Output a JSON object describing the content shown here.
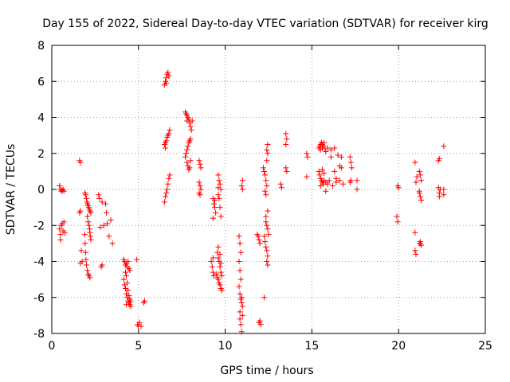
{
  "chart_data": {
    "type": "scatter",
    "title": "Day 155 of 2022, Sidereal Day-to-day VTEC variation (SDTVAR) for receiver kirg",
    "xlabel": "GPS time / hours",
    "ylabel": "SDTVAR / TECUs",
    "xlim": [
      0,
      25
    ],
    "ylim": [
      -8,
      8
    ],
    "xticks": [
      "0",
      "5",
      "10",
      "15",
      "20",
      "25"
    ],
    "yticks": [
      "-8",
      "-6",
      "-4",
      "-2",
      "0",
      "2",
      "4",
      "6",
      "8"
    ],
    "grid": true,
    "marker": "+",
    "color": "#ff0000",
    "series": [
      {
        "name": "SDTVAR",
        "points": [
          [
            0.45,
            0.2
          ],
          [
            0.5,
            0.0
          ],
          [
            0.55,
            -0.1
          ],
          [
            0.6,
            -0.05
          ],
          [
            0.65,
            0.0
          ],
          [
            0.7,
            -0.1
          ],
          [
            0.45,
            -2.2
          ],
          [
            0.5,
            -2.5
          ],
          [
            0.5,
            -2.8
          ],
          [
            0.55,
            -2.0
          ],
          [
            0.6,
            -1.9
          ],
          [
            0.65,
            -2.3
          ],
          [
            0.7,
            -1.8
          ],
          [
            0.75,
            -2.4
          ],
          [
            1.6,
            1.6
          ],
          [
            1.65,
            1.5
          ],
          [
            1.6,
            -1.3
          ],
          [
            1.65,
            -1.2
          ],
          [
            1.7,
            -3.4
          ],
          [
            1.75,
            -4.0
          ],
          [
            1.65,
            -4.1
          ],
          [
            1.9,
            -2.5
          ],
          [
            1.92,
            -3.0
          ],
          [
            1.95,
            -3.5
          ],
          [
            1.97,
            -3.9
          ],
          [
            2.0,
            -4.2
          ],
          [
            2.05,
            -4.5
          ],
          [
            2.1,
            -4.7
          ],
          [
            2.15,
            -4.8
          ],
          [
            2.2,
            -4.9
          ],
          [
            1.95,
            -0.3
          ],
          [
            2.0,
            -0.5
          ],
          [
            2.03,
            -0.7
          ],
          [
            2.06,
            -0.8
          ],
          [
            2.1,
            -0.9
          ],
          [
            2.13,
            -1.0
          ],
          [
            2.16,
            -1.1
          ],
          [
            2.2,
            -1.2
          ],
          [
            2.25,
            -1.3
          ],
          [
            1.92,
            -0.2
          ],
          [
            2.05,
            -1.5
          ],
          [
            2.1,
            -1.8
          ],
          [
            2.15,
            -2.0
          ],
          [
            2.18,
            -2.2
          ],
          [
            2.2,
            -2.4
          ],
          [
            2.22,
            -2.6
          ],
          [
            2.25,
            -2.8
          ],
          [
            2.7,
            -0.3
          ],
          [
            2.75,
            -0.5
          ],
          [
            2.9,
            -0.7
          ],
          [
            3.1,
            -0.8
          ],
          [
            2.8,
            -2.1
          ],
          [
            3.0,
            -2.0
          ],
          [
            3.2,
            -1.9
          ],
          [
            3.4,
            -1.7
          ],
          [
            3.15,
            -1.3
          ],
          [
            3.3,
            -2.6
          ],
          [
            3.5,
            -3.0
          ],
          [
            2.9,
            -4.2
          ],
          [
            2.85,
            -4.3
          ],
          [
            4.15,
            -3.9
          ],
          [
            4.2,
            -4.0
          ],
          [
            4.25,
            -4.2
          ],
          [
            4.3,
            -4.1
          ],
          [
            4.35,
            -4.3
          ],
          [
            4.4,
            -4.0
          ],
          [
            4.45,
            -4.4
          ],
          [
            4.5,
            -4.5
          ],
          [
            4.15,
            -5.0
          ],
          [
            4.2,
            -5.3
          ],
          [
            4.25,
            -5.5
          ],
          [
            4.3,
            -5.8
          ],
          [
            4.35,
            -6.0
          ],
          [
            4.4,
            -6.2
          ],
          [
            4.45,
            -6.3
          ],
          [
            4.5,
            -6.4
          ],
          [
            4.55,
            -6.5
          ],
          [
            4.25,
            -4.6
          ],
          [
            4.3,
            -4.8
          ],
          [
            4.35,
            -5.2
          ],
          [
            4.4,
            -5.6
          ],
          [
            4.45,
            -5.9
          ],
          [
            4.5,
            -6.1
          ],
          [
            4.55,
            -6.2
          ],
          [
            4.3,
            -6.4
          ],
          [
            4.9,
            -3.9
          ],
          [
            4.95,
            -7.5
          ],
          [
            5.0,
            -7.6
          ],
          [
            5.05,
            -7.4
          ],
          [
            5.15,
            -7.6
          ],
          [
            5.3,
            -6.3
          ],
          [
            5.35,
            -6.2
          ],
          [
            6.5,
            5.8
          ],
          [
            6.55,
            6.0
          ],
          [
            6.6,
            6.2
          ],
          [
            6.65,
            6.4
          ],
          [
            6.7,
            6.5
          ],
          [
            6.75,
            6.3
          ],
          [
            6.6,
            5.9
          ],
          [
            6.5,
            2.5
          ],
          [
            6.55,
            2.6
          ],
          [
            6.6,
            2.7
          ],
          [
            6.65,
            2.9
          ],
          [
            6.7,
            3.0
          ],
          [
            6.75,
            3.1
          ],
          [
            6.8,
            3.3
          ],
          [
            6.55,
            2.3
          ],
          [
            6.5,
            -0.7
          ],
          [
            6.55,
            -0.4
          ],
          [
            6.6,
            -0.2
          ],
          [
            6.65,
            0.0
          ],
          [
            6.7,
            0.3
          ],
          [
            6.75,
            0.6
          ],
          [
            6.8,
            0.8
          ],
          [
            7.7,
            4.3
          ],
          [
            7.75,
            4.2
          ],
          [
            7.8,
            4.1
          ],
          [
            7.85,
            4.0
          ],
          [
            7.9,
            3.9
          ],
          [
            7.95,
            3.7
          ],
          [
            8.0,
            3.5
          ],
          [
            8.05,
            3.3
          ],
          [
            8.1,
            3.8
          ],
          [
            7.8,
            3.8
          ],
          [
            7.7,
            1.8
          ],
          [
            7.75,
            2.0
          ],
          [
            7.8,
            2.2
          ],
          [
            7.85,
            2.4
          ],
          [
            7.9,
            2.6
          ],
          [
            7.95,
            2.7
          ],
          [
            8.0,
            2.8
          ],
          [
            7.8,
            1.5
          ],
          [
            7.85,
            1.3
          ],
          [
            7.9,
            1.1
          ],
          [
            7.95,
            1.2
          ],
          [
            8.0,
            1.6
          ],
          [
            8.5,
            1.6
          ],
          [
            8.55,
            1.4
          ],
          [
            8.6,
            1.2
          ],
          [
            8.5,
            0.4
          ],
          [
            8.55,
            0.2
          ],
          [
            8.6,
            0.0
          ],
          [
            8.5,
            -0.2
          ],
          [
            8.55,
            -0.3
          ],
          [
            9.3,
            -0.5
          ],
          [
            9.35,
            -0.8
          ],
          [
            9.4,
            -1.0
          ],
          [
            9.45,
            -1.3
          ],
          [
            9.3,
            -1.6
          ],
          [
            9.4,
            -0.6
          ],
          [
            9.6,
            0.8
          ],
          [
            9.65,
            0.5
          ],
          [
            9.7,
            0.3
          ],
          [
            9.75,
            0.0
          ],
          [
            9.6,
            -0.3
          ],
          [
            9.65,
            -0.5
          ],
          [
            9.7,
            -1.0
          ],
          [
            9.75,
            -1.5
          ],
          [
            9.6,
            0.1
          ],
          [
            9.55,
            -3.5
          ],
          [
            9.6,
            -3.8
          ],
          [
            9.65,
            -4.0
          ],
          [
            9.7,
            -4.3
          ],
          [
            9.75,
            -4.6
          ],
          [
            9.8,
            -4.8
          ],
          [
            9.6,
            -3.2
          ],
          [
            9.7,
            -3.6
          ],
          [
            9.75,
            -4.1
          ],
          [
            9.55,
            -4.9
          ],
          [
            9.6,
            -5.0
          ],
          [
            9.65,
            -5.2
          ],
          [
            9.7,
            -5.3
          ],
          [
            9.75,
            -5.5
          ],
          [
            9.8,
            -5.6
          ],
          [
            9.5,
            -4.7
          ],
          [
            9.2,
            -4.0
          ],
          [
            9.25,
            -4.3
          ],
          [
            9.3,
            -4.6
          ],
          [
            9.35,
            -4.8
          ],
          [
            9.3,
            -3.8
          ],
          [
            10.8,
            -2.6
          ],
          [
            10.85,
            -3.0
          ],
          [
            10.9,
            -3.5
          ],
          [
            10.8,
            -4.0
          ],
          [
            10.85,
            -4.5
          ],
          [
            10.9,
            -5.0
          ],
          [
            10.8,
            -5.4
          ],
          [
            10.85,
            -5.8
          ],
          [
            10.9,
            -6.1
          ],
          [
            10.95,
            -6.3
          ],
          [
            11.0,
            -6.5
          ],
          [
            10.95,
            -6.0
          ],
          [
            10.85,
            -7.2
          ],
          [
            10.9,
            -7.5
          ],
          [
            10.95,
            -7.9
          ],
          [
            11.0,
            -7.0
          ],
          [
            10.85,
            -6.8
          ],
          [
            11.0,
            0.5
          ],
          [
            10.95,
            0.2
          ],
          [
            11.0,
            0.0
          ],
          [
            11.9,
            -2.6
          ],
          [
            11.95,
            -2.8
          ],
          [
            12.0,
            -3.0
          ],
          [
            11.85,
            -2.5
          ],
          [
            12.0,
            -7.3
          ],
          [
            12.05,
            -7.5
          ],
          [
            11.95,
            -7.4
          ],
          [
            12.25,
            -6.0
          ],
          [
            12.2,
            1.2
          ],
          [
            12.25,
            1.0
          ],
          [
            12.3,
            0.8
          ],
          [
            12.35,
            0.5
          ],
          [
            12.4,
            0.2
          ],
          [
            12.3,
            -0.1
          ],
          [
            12.35,
            -0.3
          ],
          [
            12.45,
            2.5
          ],
          [
            12.4,
            2.2
          ],
          [
            12.45,
            2.0
          ],
          [
            12.4,
            1.6
          ],
          [
            12.25,
            -2.6
          ],
          [
            12.3,
            -2.9
          ],
          [
            12.35,
            -3.2
          ],
          [
            12.4,
            -3.4
          ],
          [
            12.45,
            -3.7
          ],
          [
            12.4,
            -4.0
          ],
          [
            12.45,
            -4.2
          ],
          [
            12.35,
            -1.8
          ],
          [
            12.4,
            -2.0
          ],
          [
            12.45,
            -2.2
          ],
          [
            12.5,
            -2.5
          ],
          [
            12.35,
            -1.5
          ],
          [
            12.45,
            -1.2
          ],
          [
            13.2,
            0.3
          ],
          [
            13.25,
            0.1
          ],
          [
            13.5,
            3.1
          ],
          [
            13.55,
            2.8
          ],
          [
            13.5,
            2.5
          ],
          [
            13.5,
            1.2
          ],
          [
            13.55,
            1.0
          ],
          [
            14.7,
            2.0
          ],
          [
            14.75,
            1.8
          ],
          [
            14.7,
            0.7
          ],
          [
            15.4,
            2.3
          ],
          [
            15.45,
            2.4
          ],
          [
            15.5,
            2.5
          ],
          [
            15.55,
            2.6
          ],
          [
            15.6,
            2.5
          ],
          [
            15.65,
            2.4
          ],
          [
            15.7,
            2.6
          ],
          [
            15.75,
            2.3
          ],
          [
            15.8,
            2.1
          ],
          [
            15.5,
            2.2
          ],
          [
            15.6,
            2.3
          ],
          [
            15.4,
            1.0
          ],
          [
            15.45,
            0.8
          ],
          [
            15.5,
            0.6
          ],
          [
            15.55,
            0.5
          ],
          [
            15.6,
            0.4
          ],
          [
            15.65,
            0.3
          ],
          [
            15.7,
            0.5
          ],
          [
            15.8,
            0.4
          ],
          [
            15.9,
            0.3
          ],
          [
            15.5,
            0.2
          ],
          [
            15.6,
            1.1
          ],
          [
            15.7,
            0.9
          ],
          [
            15.9,
            2.3
          ],
          [
            16.1,
            2.2
          ],
          [
            16.3,
            2.3
          ],
          [
            16.5,
            1.9
          ],
          [
            16.7,
            1.8
          ],
          [
            16.1,
            1.8
          ],
          [
            16.3,
            1.0
          ],
          [
            16.4,
            0.6
          ],
          [
            16.6,
            0.5
          ],
          [
            16.8,
            0.3
          ],
          [
            16.7,
            1.2
          ],
          [
            16.6,
            1.3
          ],
          [
            16.2,
            0.2
          ],
          [
            16.0,
            0.5
          ],
          [
            16.4,
            0.4
          ],
          [
            15.8,
            -0.1
          ],
          [
            17.2,
            1.8
          ],
          [
            17.25,
            1.5
          ],
          [
            17.3,
            1.2
          ],
          [
            17.25,
            0.5
          ],
          [
            17.2,
            0.4
          ],
          [
            17.6,
            0.5
          ],
          [
            17.6,
            0.0
          ],
          [
            19.95,
            0.2
          ],
          [
            20.0,
            0.1
          ],
          [
            19.9,
            -1.5
          ],
          [
            19.95,
            -1.8
          ],
          [
            20.95,
            1.5
          ],
          [
            21.05,
            0.7
          ],
          [
            21.0,
            0.4
          ],
          [
            21.2,
            1.0
          ],
          [
            21.25,
            0.8
          ],
          [
            21.3,
            0.5
          ],
          [
            21.2,
            -0.2
          ],
          [
            21.25,
            -0.4
          ],
          [
            21.3,
            -0.6
          ],
          [
            21.2,
            -0.1
          ],
          [
            20.95,
            -2.4
          ],
          [
            20.95,
            -3.4
          ],
          [
            21.0,
            -3.6
          ],
          [
            21.2,
            -3.0
          ],
          [
            21.25,
            -2.9
          ],
          [
            21.3,
            -3.1
          ],
          [
            21.25,
            -3.0
          ],
          [
            22.3,
            1.6
          ],
          [
            22.35,
            1.7
          ],
          [
            22.3,
            0.1
          ],
          [
            22.35,
            -0.2
          ],
          [
            22.35,
            -0.4
          ],
          [
            22.4,
            0.0
          ],
          [
            22.6,
            2.4
          ],
          [
            22.6,
            0.0
          ],
          [
            22.6,
            -0.3
          ]
        ]
      }
    ]
  }
}
